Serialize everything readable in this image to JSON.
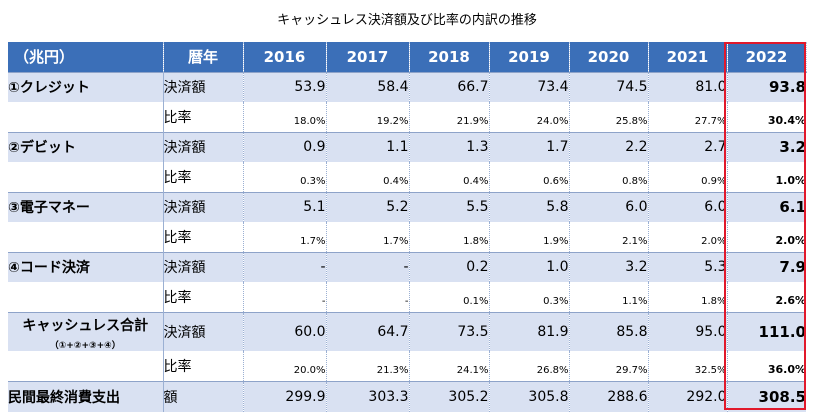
{
  "title": "キャッシュレス決済額及び比率の内訳の推移",
  "header": {
    "unit": "（兆円）",
    "label_col": "暦年",
    "years": [
      "2016",
      "2017",
      "2018",
      "2019",
      "2020",
      "2021",
      "2022"
    ]
  },
  "rows": [
    {
      "category": "①クレジット",
      "label": "決済額",
      "values": [
        "53.9",
        "58.4",
        "66.7",
        "73.4",
        "74.5",
        "81.0",
        "93.8"
      ]
    },
    {
      "category": "",
      "label": "比率",
      "values": [
        "18.0%",
        "19.2%",
        "21.9%",
        "24.0%",
        "25.8%",
        "27.7%",
        "30.4%"
      ]
    },
    {
      "category": "②デビット",
      "label": "決済額",
      "values": [
        "0.9",
        "1.1",
        "1.3",
        "1.7",
        "2.2",
        "2.7",
        "3.2"
      ]
    },
    {
      "category": "",
      "label": "比率",
      "values": [
        "0.3%",
        "0.4%",
        "0.4%",
        "0.6%",
        "0.8%",
        "0.9%",
        "1.0%"
      ]
    },
    {
      "category": "③電子マネー",
      "label": "決済額",
      "values": [
        "5.1",
        "5.2",
        "5.5",
        "5.8",
        "6.0",
        "6.0",
        "6.1"
      ]
    },
    {
      "category": "",
      "label": "比率",
      "values": [
        "1.7%",
        "1.7%",
        "1.8%",
        "1.9%",
        "2.1%",
        "2.0%",
        "2.0%"
      ]
    },
    {
      "category": "④コード決済",
      "label": "決済額",
      "values": [
        "-",
        "-",
        "0.2",
        "1.0",
        "3.2",
        "5.3",
        "7.9"
      ]
    },
    {
      "category": "",
      "label": "比率",
      "values": [
        "-",
        "-",
        "0.1%",
        "0.3%",
        "1.1%",
        "1.8%",
        "2.6%"
      ]
    },
    {
      "category": "キャッシュレス合計",
      "category_sub": "（①+②+③+④）",
      "label": "決済額",
      "values": [
        "60.0",
        "64.7",
        "73.5",
        "81.9",
        "85.8",
        "95.0",
        "111.0"
      ]
    },
    {
      "category": "",
      "label": "比率",
      "values": [
        "20.0%",
        "21.3%",
        "24.1%",
        "26.8%",
        "29.7%",
        "32.5%",
        "36.0%"
      ]
    },
    {
      "category": "民間最終消費支出",
      "label": "額",
      "values": [
        "299.9",
        "303.3",
        "305.2",
        "305.8",
        "288.6",
        "292.0",
        "308.5"
      ]
    }
  ],
  "colors": {
    "header_bg": "#3b6fb8",
    "amount_row_bg": "#d9e1f2",
    "highlight_border": "#e1192b"
  }
}
